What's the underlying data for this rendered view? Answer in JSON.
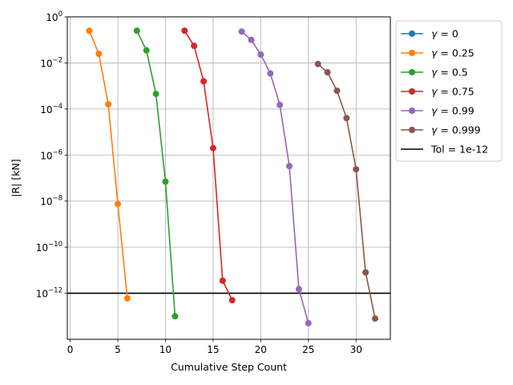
{
  "chart_data": {
    "type": "line",
    "xlabel": "Cumulative Step Count",
    "ylabel": "|R| [kN]",
    "xlim": [
      -0.3,
      33.6
    ],
    "ylim": [
      1e-14,
      1
    ],
    "yscale": "log",
    "grid": true,
    "legend_position": "outside-top-right",
    "x_ticks": [
      0,
      5,
      10,
      15,
      20,
      25,
      30
    ],
    "x_tick_labels": [
      "0",
      "5",
      "10",
      "15",
      "20",
      "25",
      "30"
    ],
    "y_ticks": [
      1,
      0.01,
      0.0001,
      1e-06,
      1e-08,
      1e-10,
      1e-12
    ],
    "y_tick_labels": [
      {
        "base": "10",
        "exp": "0"
      },
      {
        "base": "10",
        "exp": "−2"
      },
      {
        "base": "10",
        "exp": "−4"
      },
      {
        "base": "10",
        "exp": "−6"
      },
      {
        "base": "10",
        "exp": "−8"
      },
      {
        "base": "10",
        "exp": "−10"
      },
      {
        "base": "10",
        "exp": "−12"
      }
    ],
    "series": [
      {
        "name": "γ = 0",
        "label_prefix": "γ = ",
        "label_value": "0",
        "color": "#1f77b4",
        "x": [],
        "y": []
      },
      {
        "name": "γ = 0.25",
        "label_prefix": "γ = ",
        "label_value": "0.25",
        "color": "#ff7f0e",
        "x": [
          2,
          3,
          4,
          5,
          6
        ],
        "y": [
          0.25,
          0.025,
          0.00016,
          7.5e-09,
          6e-13
        ]
      },
      {
        "name": "γ = 0.5",
        "label_prefix": "γ = ",
        "label_value": "0.5",
        "color": "#2ca02c",
        "x": [
          7,
          8,
          9,
          10,
          11
        ],
        "y": [
          0.25,
          0.035,
          0.00045,
          7e-08,
          1e-13
        ]
      },
      {
        "name": "γ = 0.75",
        "label_prefix": "γ = ",
        "label_value": "0.75",
        "color": "#d62728",
        "x": [
          12,
          13,
          14,
          15,
          16,
          17
        ],
        "y": [
          0.25,
          0.055,
          0.0016,
          2e-06,
          3.5e-12,
          5e-13
        ]
      },
      {
        "name": "γ = 0.99",
        "label_prefix": "γ = ",
        "label_value": "0.99",
        "color": "#9467bd",
        "x": [
          18,
          19,
          20,
          21,
          22,
          23,
          24,
          25
        ],
        "y": [
          0.23,
          0.1,
          0.023,
          0.0035,
          0.00015,
          3.3e-07,
          1.5e-12,
          5e-14
        ]
      },
      {
        "name": "γ = 0.999",
        "label_prefix": "γ = ",
        "label_value": "0.999",
        "color": "#8c564b",
        "x": [
          26,
          27,
          28,
          29,
          30,
          31,
          32
        ],
        "y": [
          0.009,
          0.0039,
          0.00062,
          4e-05,
          2.4e-07,
          8e-12,
          8e-14
        ]
      }
    ],
    "hlines": [
      {
        "name": "Tol = 1e-12",
        "y": 1e-12,
        "color": "#000000"
      }
    ]
  }
}
